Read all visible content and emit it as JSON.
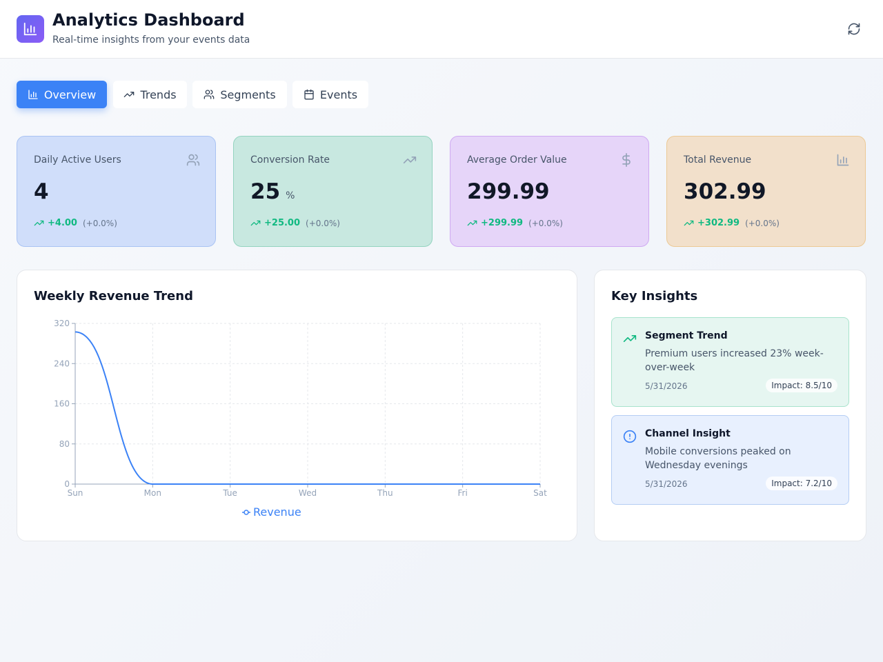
{
  "header": {
    "title": "Analytics Dashboard",
    "subtitle": "Real-time insights from your events data"
  },
  "tabs": [
    "Overview",
    "Trends",
    "Segments",
    "Events"
  ],
  "kpis": [
    {
      "label": "Daily Active Users",
      "value": "4",
      "change": "+4.00",
      "pct": "(+0.0%)"
    },
    {
      "label": "Conversion Rate",
      "value": "25",
      "unit": "%",
      "change": "+25.00",
      "pct": "(+0.0%)"
    },
    {
      "label": "Average Order Value",
      "value": "299.99",
      "change": "+299.99",
      "pct": "(+0.0%)"
    },
    {
      "label": "Total Revenue",
      "value": "302.99",
      "change": "+302.99",
      "pct": "(+0.0%)"
    }
  ],
  "chart_data": {
    "type": "line",
    "title": "Weekly Revenue Trend",
    "categories": [
      "Sun",
      "Mon",
      "Tue",
      "Wed",
      "Thu",
      "Fri",
      "Sat"
    ],
    "series": [
      {
        "name": "Revenue",
        "color": "#3b82f6",
        "values": [
          302.99,
          0,
          0,
          0,
          0,
          0,
          0
        ]
      }
    ],
    "ylim": [
      0,
      320
    ],
    "yticks": [
      0,
      80,
      160,
      240,
      320
    ],
    "grid": true
  },
  "insights": {
    "title": "Key Insights",
    "items": [
      {
        "title": "Segment Trend",
        "text": "Premium users increased 23% week-over-week",
        "date": "5/31/2026",
        "impact": "Impact: 8.5/10"
      },
      {
        "title": "Channel Insight",
        "text": "Mobile conversions peaked on Wednesday evenings",
        "date": "5/31/2026",
        "impact": "Impact: 7.2/10"
      }
    ]
  }
}
